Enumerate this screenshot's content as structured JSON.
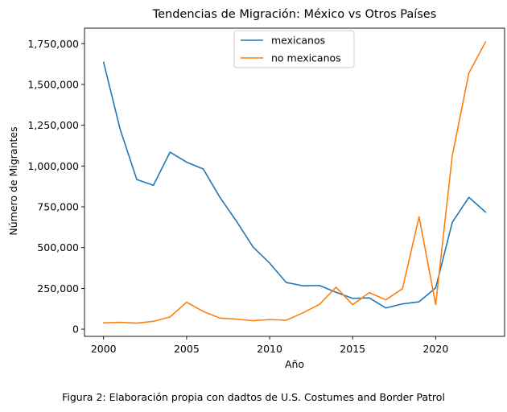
{
  "chart_data": {
    "type": "line",
    "title": "Tendencias de Migración: México vs Otros Países",
    "xlabel": "Año",
    "ylabel": "Número de Migrantes",
    "x": [
      2000,
      2001,
      2002,
      2003,
      2004,
      2005,
      2006,
      2007,
      2008,
      2009,
      2010,
      2011,
      2012,
      2013,
      2014,
      2015,
      2016,
      2017,
      2018,
      2019,
      2020,
      2021,
      2022,
      2023
    ],
    "series": [
      {
        "name": "mexicanos",
        "color": "#1f77b4",
        "values": [
          1636000,
          1224000,
          917000,
          882000,
          1085000,
          1024000,
          982000,
          809000,
          662000,
          504000,
          405000,
          286000,
          266000,
          268000,
          226000,
          189000,
          192000,
          130000,
          155000,
          168000,
          253000,
          655000,
          808000,
          718000
        ]
      },
      {
        "name": "no mexicanos",
        "color": "#ff7f0e",
        "values": [
          39000,
          42000,
          37000,
          48000,
          75000,
          165000,
          109000,
          68000,
          62000,
          52000,
          59000,
          55000,
          100000,
          152000,
          257000,
          150000,
          224000,
          180000,
          248000,
          689000,
          151000,
          1064000,
          1570000,
          1760000
        ]
      }
    ],
    "xlim": [
      1998.85,
      2024.15
    ],
    "ylim": [
      -44000,
      1845000
    ],
    "xticks": [
      2000,
      2005,
      2010,
      2015,
      2020
    ],
    "xtick_labels": [
      "2000",
      "2005",
      "2010",
      "2015",
      "2020"
    ],
    "yticks": [
      0,
      250000,
      500000,
      750000,
      1000000,
      1250000,
      1500000,
      1750000
    ],
    "ytick_labels": [
      "0",
      "250,000",
      "500,000",
      "750,000",
      "1,000,000",
      "1,250,000",
      "1,500,000",
      "1,750,000"
    ],
    "grid": false,
    "legend_position": "upper center"
  },
  "caption": "Figura 2: Elaboración propia con dadtos de U.S. Costumes and Border Patrol"
}
